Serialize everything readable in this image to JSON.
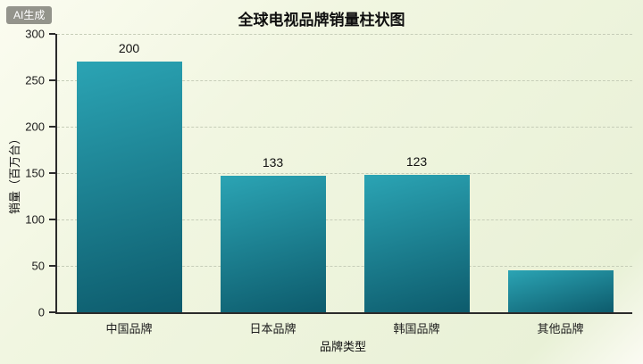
{
  "watermark": {
    "label": "AI生成"
  },
  "chart_data": {
    "type": "bar",
    "title": "全球电视品牌销量柱状图",
    "xlabel": "品牌类型",
    "ylabel": "销量（百万台）",
    "categories": [
      "中国品牌",
      "日本品牌",
      "韩国品牌",
      "其他品牌"
    ],
    "values": [
      200,
      133,
      123,
      45
    ],
    "data_labels": [
      "200",
      "133",
      "123",
      ""
    ],
    "rendered_bar_heights": [
      270,
      147,
      148,
      45
    ],
    "ylim": [
      0,
      300
    ],
    "yticks": [
      0,
      50,
      100,
      150,
      200,
      250,
      300
    ],
    "grid": "dashed-horizontal",
    "legend": "none",
    "colors": {
      "bar_gradient_top": "#2ba4b4",
      "bar_gradient_bottom": "#0d5b6c",
      "axis": "#2b2b2b",
      "gridline": "#c6cdb8",
      "background": "#eff5de",
      "title_text": "#101010",
      "watermark_bg": "rgba(64,64,58,0.55)",
      "watermark_text": "#ffffff"
    }
  }
}
